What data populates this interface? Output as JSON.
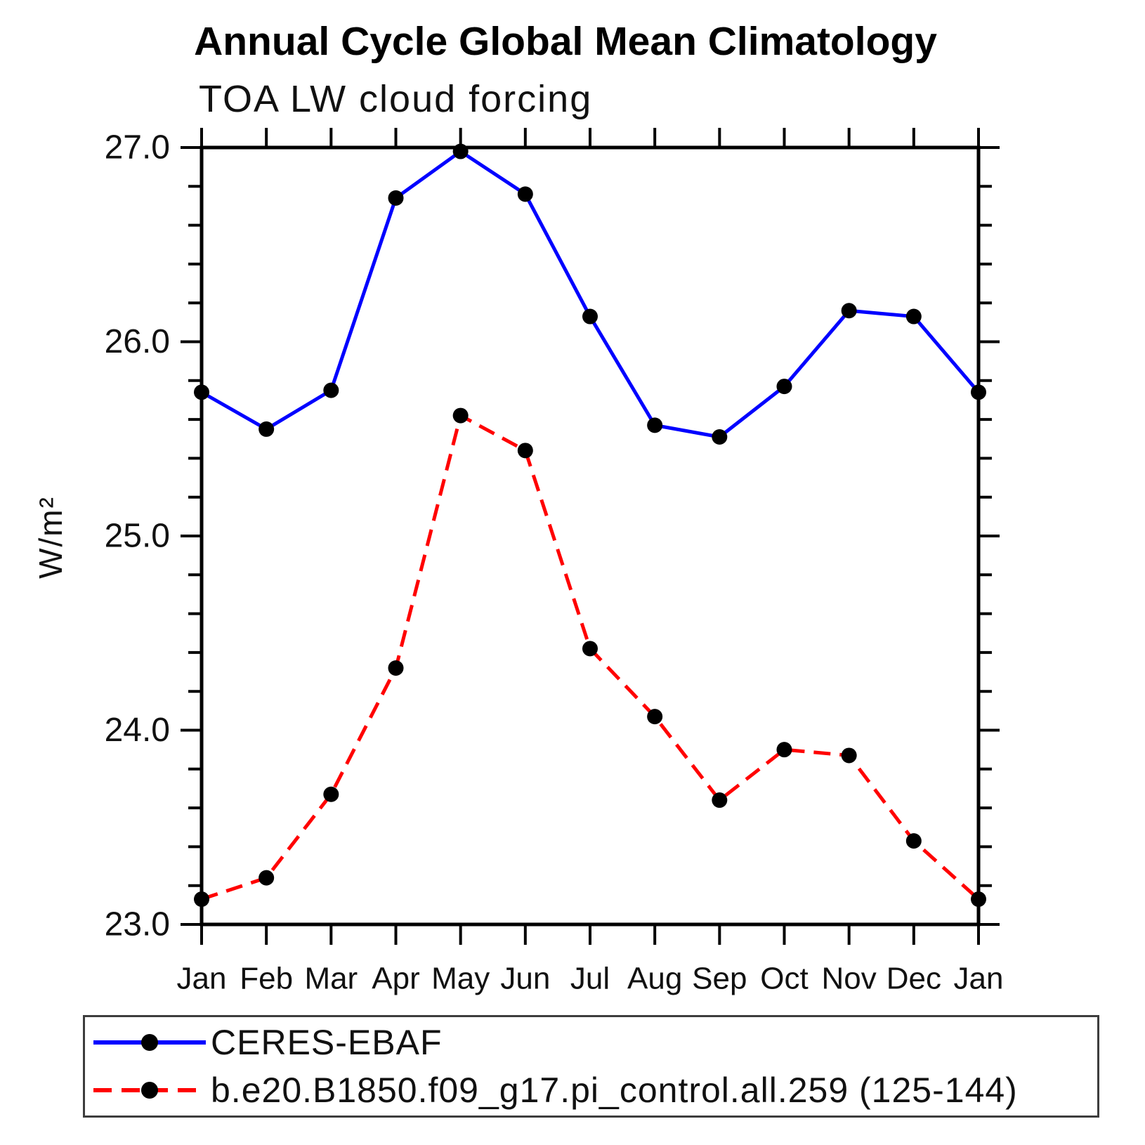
{
  "title": "Annual Cycle Global Mean Climatology",
  "subtitle": "TOA LW cloud forcing",
  "chart_data": {
    "type": "line",
    "title": "Annual Cycle Global Mean Climatology",
    "subtitle": "TOA LW cloud forcing",
    "xlabel": "",
    "ylabel": "W/m²",
    "categories": [
      "Jan",
      "Feb",
      "Mar",
      "Apr",
      "May",
      "Jun",
      "Jul",
      "Aug",
      "Sep",
      "Oct",
      "Nov",
      "Dec",
      "Jan"
    ],
    "ylim": [
      23.0,
      27.0
    ],
    "y_major_ticks": [
      27.0,
      26.0,
      25.0,
      24.0,
      23.0
    ],
    "y_tick_labels": [
      "27.0",
      "26.0",
      "25.0",
      "24.0",
      "23.0"
    ],
    "y_minor_step": 0.2,
    "grid": false,
    "legend_position": "bottom",
    "frame_color": "#000000",
    "marker_color": "#000000",
    "series": [
      {
        "name": "CERES-EBAF",
        "color": "#0000ff",
        "style": "solid",
        "marker": "circle",
        "values": [
          25.74,
          25.55,
          25.75,
          26.74,
          26.98,
          26.76,
          26.13,
          25.57,
          25.51,
          25.77,
          26.16,
          26.13,
          25.74
        ]
      },
      {
        "name": "b.e20.B1850.f09_g17.pi_control.all.259 (125-144)",
        "color": "#ff0000",
        "style": "dashed",
        "marker": "circle",
        "values": [
          23.13,
          23.24,
          23.67,
          24.32,
          25.62,
          25.44,
          24.42,
          24.07,
          23.64,
          23.9,
          23.87,
          23.43,
          23.13
        ]
      }
    ]
  }
}
